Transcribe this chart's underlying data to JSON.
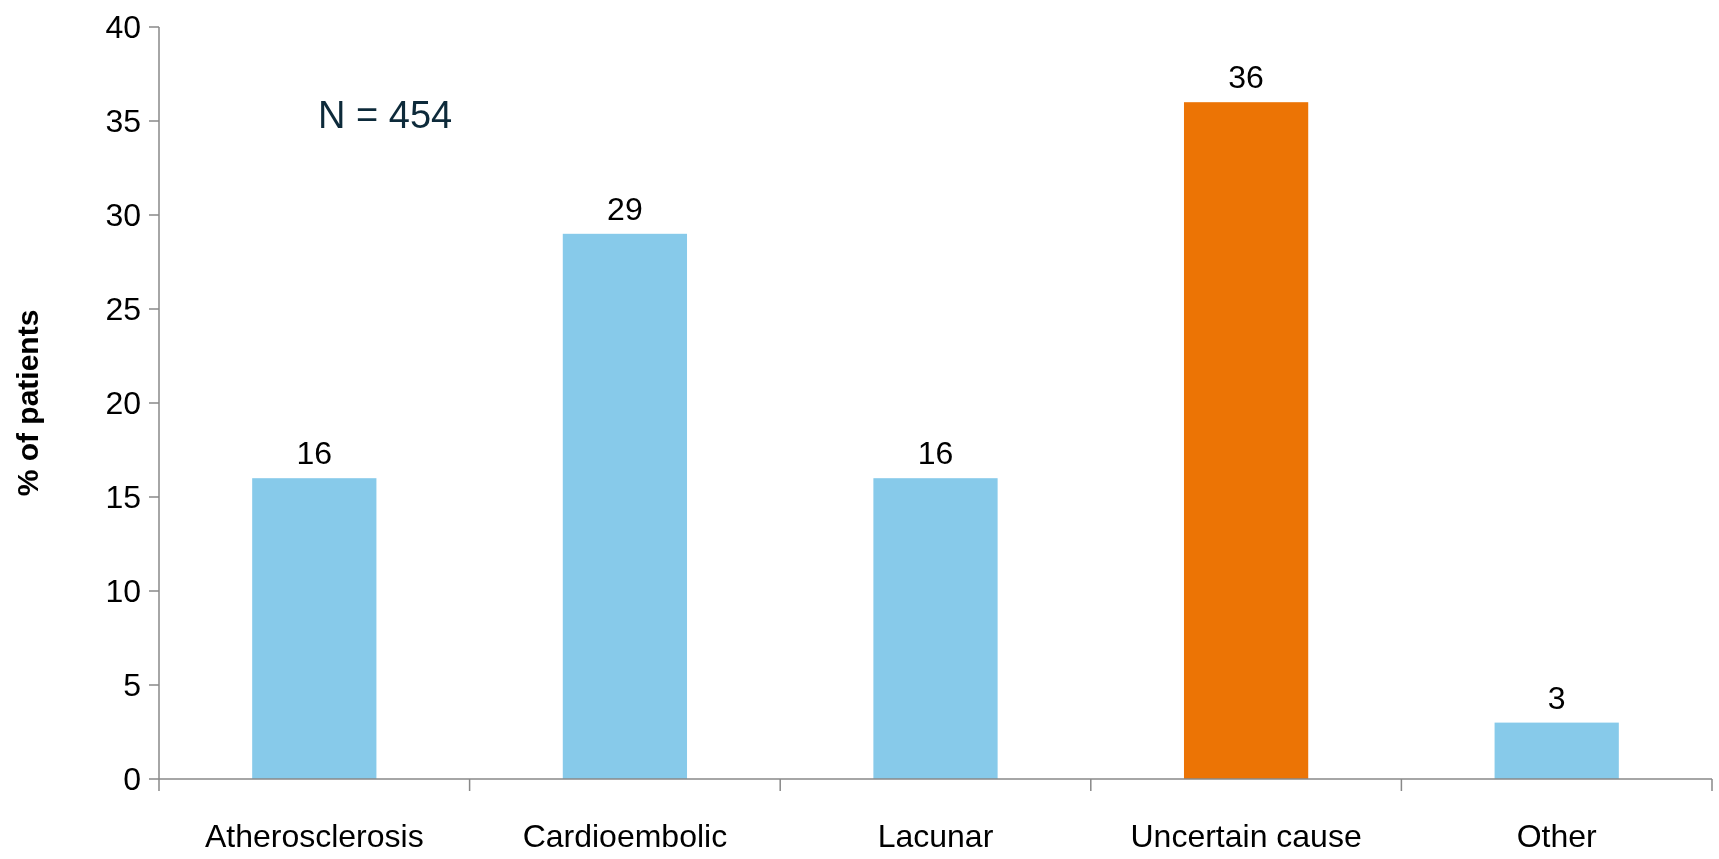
{
  "chart_data": {
    "type": "bar",
    "ylabel": "% of patients",
    "categories": [
      "Atherosclerosis",
      "Cardioembolic",
      "Lacunar",
      "Uncertain cause",
      "Other"
    ],
    "values": [
      16,
      29,
      16,
      36,
      3
    ],
    "colors": [
      "#87caea",
      "#87caea",
      "#87caea",
      "#ec7405",
      "#87caea"
    ],
    "ylim": [
      0,
      40
    ],
    "yticks": [
      0,
      5,
      10,
      15,
      20,
      25,
      30,
      35,
      40
    ],
    "data_labels": true,
    "grid": false,
    "annotations": [
      "N = 454"
    ]
  }
}
